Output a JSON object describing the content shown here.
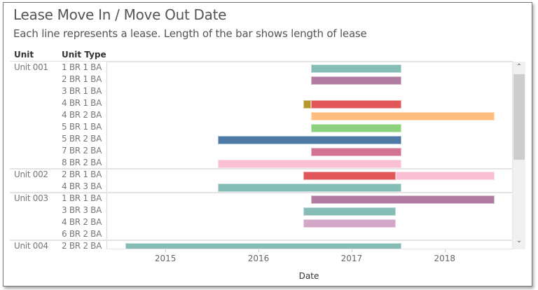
{
  "title": "Lease Move In / Move Out Date",
  "subtitle": "Each line represents a lease. Length of the bar shows length of lease",
  "headers": {
    "unit": "Unit",
    "unit_type": "Unit Type"
  },
  "chart_data": {
    "type": "gantt",
    "xlabel": "Date",
    "x_ticks": [
      "2015",
      "2016",
      "2017",
      "2018"
    ],
    "xlim": [
      "2014-05-15",
      "2018-09-25"
    ],
    "rows": [
      {
        "unit": "Unit 001",
        "type": "1 BR 1 BA",
        "segments": [
          {
            "start": "2016-07-22",
            "end": "2017-07-12",
            "color": "#86bcb6"
          }
        ]
      },
      {
        "unit": "",
        "type": "2 BR 1 BA",
        "segments": [
          {
            "start": "2016-07-22",
            "end": "2017-07-12",
            "color": "#b07aa1"
          }
        ]
      },
      {
        "unit": "",
        "type": "3 BR 1 BA",
        "segments": []
      },
      {
        "unit": "",
        "type": "4 BR 1 BA",
        "segments": [
          {
            "start": "2016-06-22",
            "end": "2016-07-22",
            "color": "#b6992d"
          },
          {
            "start": "2016-07-22",
            "end": "2017-07-12",
            "color": "#e15759"
          }
        ]
      },
      {
        "unit": "",
        "type": "4 BR 2 BA",
        "segments": [
          {
            "start": "2016-07-22",
            "end": "2018-07-12",
            "color": "#ffbe7d"
          }
        ]
      },
      {
        "unit": "",
        "type": "5 BR 1 BA",
        "segments": [
          {
            "start": "2016-07-22",
            "end": "2017-07-12",
            "color": "#8cd17d"
          }
        ]
      },
      {
        "unit": "",
        "type": "5 BR 2 BA",
        "segments": [
          {
            "start": "2015-07-22",
            "end": "2017-07-12",
            "color": "#4e79a7"
          }
        ]
      },
      {
        "unit": "",
        "type": "7 BR 2 BA",
        "segments": [
          {
            "start": "2016-07-22",
            "end": "2017-07-12",
            "color": "#d37295"
          }
        ]
      },
      {
        "unit": "",
        "type": "8 BR 2 BA",
        "segments": [
          {
            "start": "2015-07-22",
            "end": "2017-07-12",
            "color": "#fabfd2"
          }
        ]
      },
      {
        "unit": "Unit 002",
        "type": "2 BR 1 BA",
        "segments": [
          {
            "start": "2016-06-22",
            "end": "2017-06-20",
            "color": "#e15759"
          },
          {
            "start": "2017-06-20",
            "end": "2018-07-12",
            "color": "#fabfd2"
          }
        ]
      },
      {
        "unit": "",
        "type": "4 BR 3 BA",
        "segments": [
          {
            "start": "2015-07-22",
            "end": "2017-07-12",
            "color": "#86bcb6"
          }
        ]
      },
      {
        "unit": "Unit 003",
        "type": "1 BR 1 BA",
        "segments": [
          {
            "start": "2016-07-22",
            "end": "2018-07-12",
            "color": "#b07aa1"
          }
        ]
      },
      {
        "unit": "",
        "type": "3 BR 3 BA",
        "segments": [
          {
            "start": "2016-06-22",
            "end": "2017-06-20",
            "color": "#86bcb6"
          }
        ]
      },
      {
        "unit": "",
        "type": "4 BR 2 BA",
        "segments": [
          {
            "start": "2016-06-22",
            "end": "2017-06-20",
            "color": "#d4a6c8"
          }
        ]
      },
      {
        "unit": "",
        "type": "6 BR 2 BA",
        "segments": []
      },
      {
        "unit": "Unit 004",
        "type": "2 BR 2 BA",
        "segments": [
          {
            "start": "2014-07-26",
            "end": "2017-07-12",
            "color": "#86bcb6"
          }
        ]
      }
    ]
  },
  "scrollbar": {
    "up_icon": "chevron-up-icon",
    "down_icon": "chevron-down-icon"
  }
}
